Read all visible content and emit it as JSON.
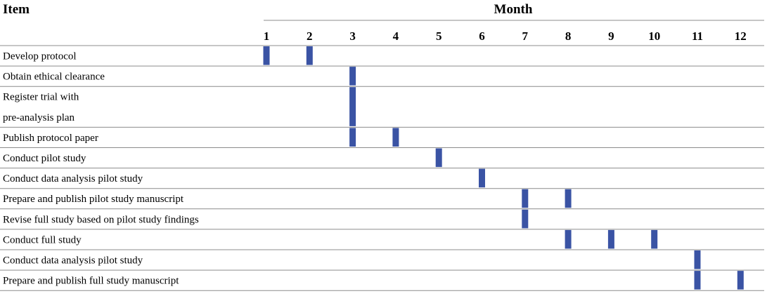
{
  "chart_data": {
    "type": "gantt",
    "header": {
      "item": "Item",
      "month": "Month"
    },
    "months": [
      "1",
      "2",
      "3",
      "4",
      "5",
      "6",
      "7",
      "8",
      "9",
      "10",
      "11",
      "12"
    ],
    "rows": [
      {
        "label_lines": [
          "Develop protocol"
        ],
        "months": [
          1,
          2
        ]
      },
      {
        "label_lines": [
          "Obtain ethical clearance"
        ],
        "months": [
          3
        ]
      },
      {
        "label_lines": [
          "Register trial with",
          "pre-analysis plan"
        ],
        "months": [
          3
        ]
      },
      {
        "label_lines": [
          "Publish protocol paper"
        ],
        "months": [
          3,
          4
        ]
      },
      {
        "label_lines": [
          "Conduct pilot study"
        ],
        "months": [
          5
        ]
      },
      {
        "label_lines": [
          "Conduct data analysis pilot study"
        ],
        "months": [
          6
        ]
      },
      {
        "label_lines": [
          "Prepare and publish pilot study manuscript"
        ],
        "months": [
          7,
          8
        ]
      },
      {
        "label_lines": [
          "Revise full study based on pilot study findings"
        ],
        "months": [
          7
        ]
      },
      {
        "label_lines": [
          "Conduct full study"
        ],
        "months": [
          8,
          9,
          10
        ]
      },
      {
        "label_lines": [
          "Conduct data analysis pilot study"
        ],
        "months": [
          11
        ]
      },
      {
        "label_lines": [
          "Prepare and publish full study manuscript"
        ],
        "months": [
          11,
          12
        ]
      }
    ],
    "colors": {
      "bar": "#3a53a4",
      "rule": "#8c8c8c",
      "text": "#231f20"
    }
  }
}
